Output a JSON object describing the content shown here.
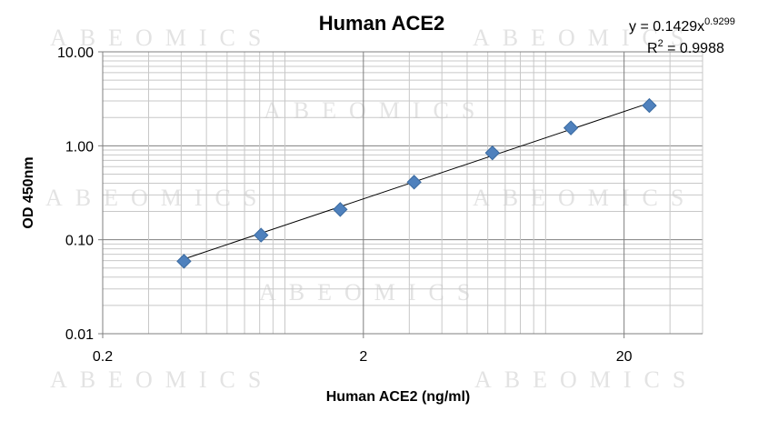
{
  "watermark": "ABEOMICS",
  "chart_data": {
    "type": "scatter",
    "title": "Human ACE2",
    "xlabel": "Human ACE2 (ng/ml)",
    "ylabel": "OD 450nm",
    "x_scale": "log",
    "y_scale": "log",
    "xlim": [
      0.2,
      40
    ],
    "ylim": [
      0.01,
      10
    ],
    "x_ticks": [
      {
        "value": 0.2,
        "label": "0.2"
      },
      {
        "value": 2,
        "label": "2"
      },
      {
        "value": 20,
        "label": "20"
      }
    ],
    "y_ticks": [
      {
        "value": 0.01,
        "label": "0.01"
      },
      {
        "value": 0.1,
        "label": "0.10"
      },
      {
        "value": 1,
        "label": "1.00"
      },
      {
        "value": 10,
        "label": "10.00"
      }
    ],
    "grid": true,
    "marker_color": "#4f81bd",
    "points": [
      {
        "x": 0.41,
        "y": 0.059
      },
      {
        "x": 0.81,
        "y": 0.112
      },
      {
        "x": 1.63,
        "y": 0.21
      },
      {
        "x": 3.13,
        "y": 0.41
      },
      {
        "x": 6.25,
        "y": 0.84
      },
      {
        "x": 12.5,
        "y": 1.55
      },
      {
        "x": 25,
        "y": 2.68
      }
    ],
    "trendline": {
      "type": "power",
      "coefficient": 0.1429,
      "exponent": 0.9299,
      "equation_prefix": "y = 0.1429x",
      "equation_exponent": "0.9299",
      "r2_prefix": "R",
      "r2_exponent": "2",
      "r2_suffix": " = 0.9988"
    }
  }
}
